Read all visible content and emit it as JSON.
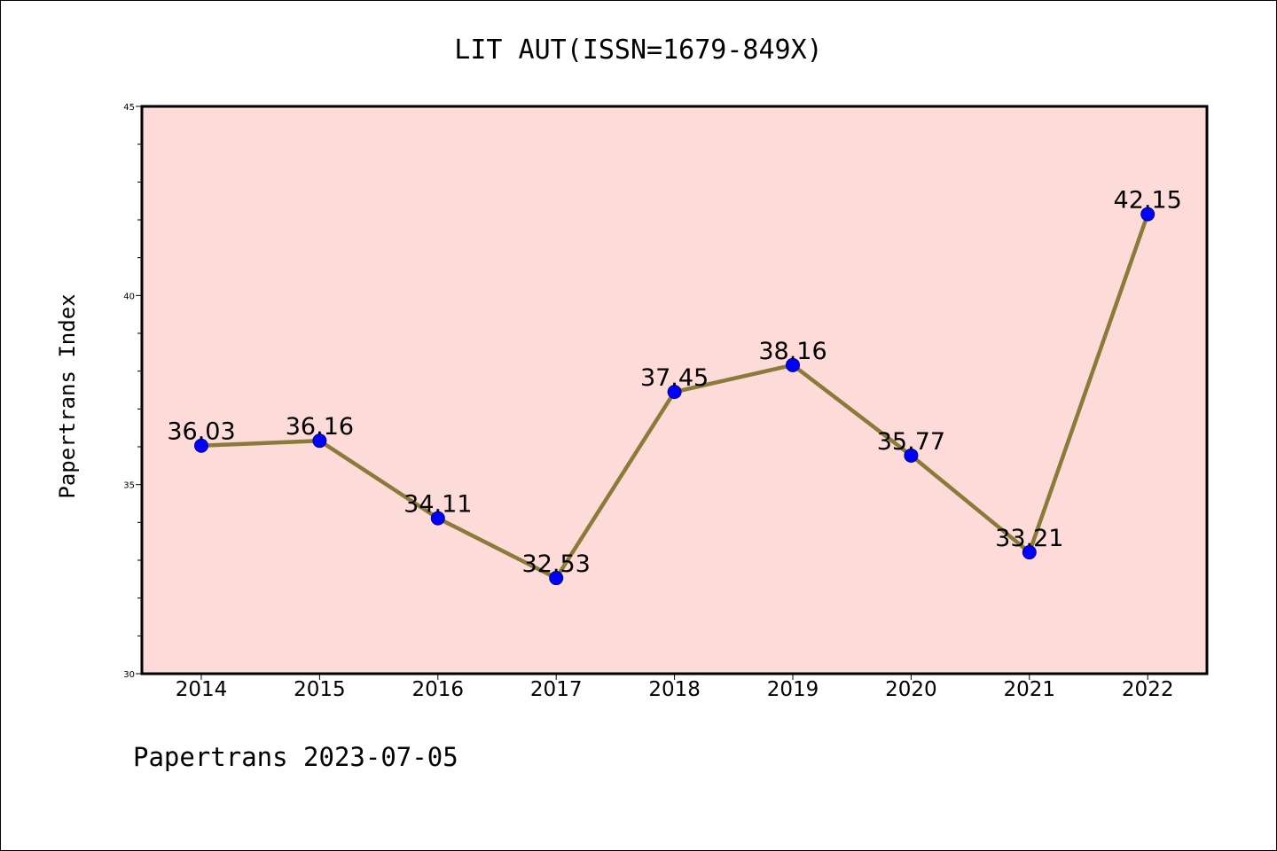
{
  "colors": {
    "plot_background": "#fddbd8",
    "line": "#8b7b3a",
    "marker_fill": "#0000ff",
    "marker_edge": "#000080",
    "axis": "#000000"
  },
  "chart_data": {
    "type": "line",
    "title": "LIT AUT(ISSN=1679-849X)",
    "xlabel": "",
    "ylabel": "Papertrans Index",
    "categories": [
      "2014",
      "2015",
      "2016",
      "2017",
      "2018",
      "2019",
      "2020",
      "2021",
      "2022"
    ],
    "series": [
      {
        "values": [
          36.03,
          36.16,
          34.11,
          32.53,
          37.45,
          38.16,
          35.77,
          33.21,
          42.15
        ],
        "data_labels": [
          "36.03",
          "36.16",
          "34.11",
          "32.53",
          "37.45",
          "38.16",
          "35.77",
          "33.21",
          "42.15"
        ]
      }
    ],
    "ylim": [
      30,
      45
    ],
    "yticks": [
      "30",
      "35",
      "40",
      "45"
    ],
    "grid": false,
    "legend": "none",
    "marker": "circle"
  },
  "footer": "Papertrans 2023-07-05"
}
